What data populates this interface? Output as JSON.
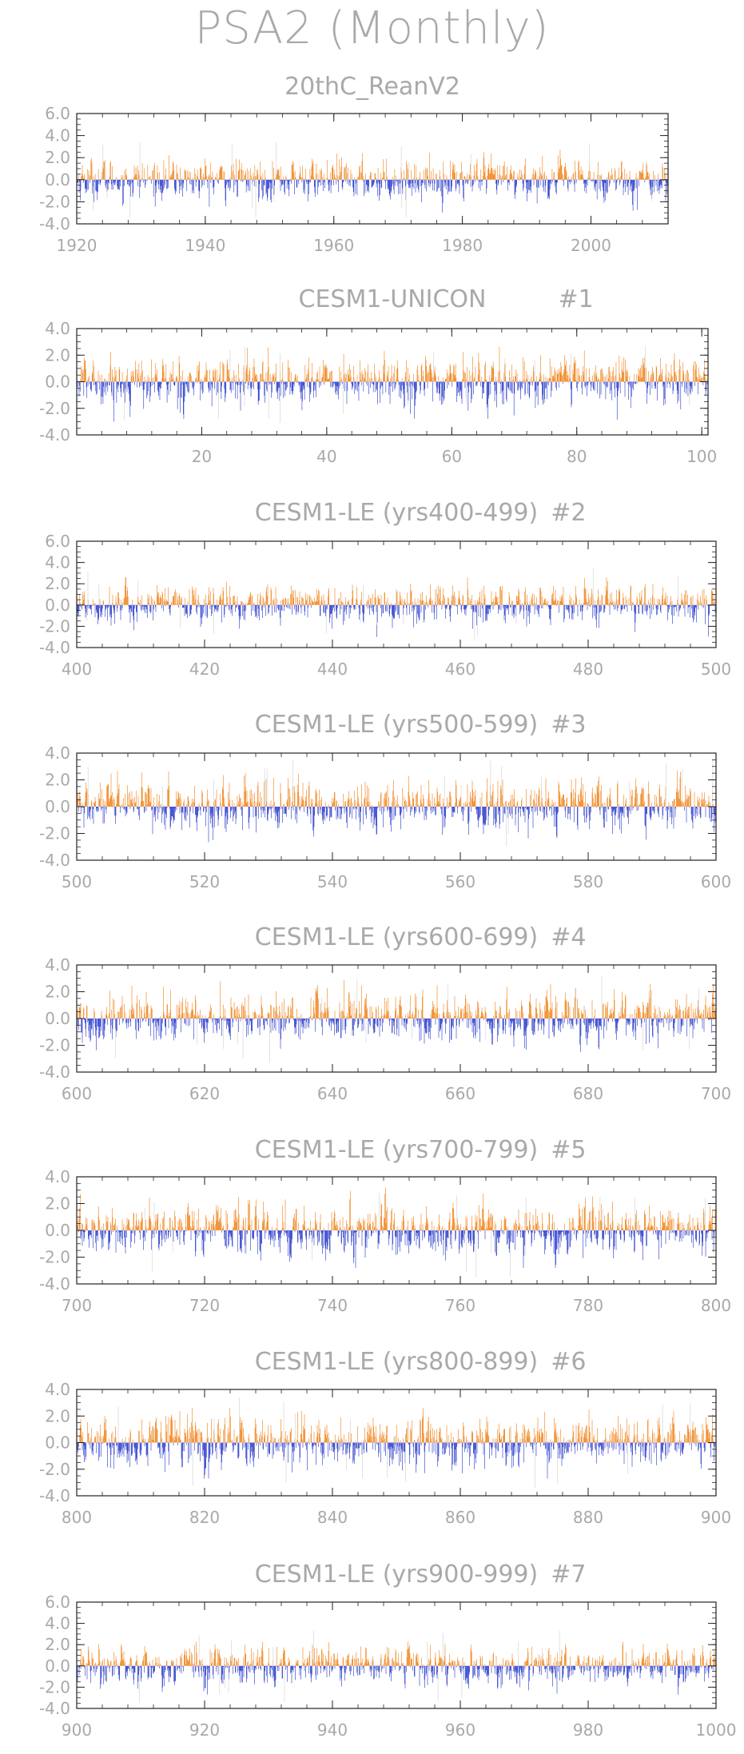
{
  "page": {
    "title": "PSA2 (Monthly)"
  },
  "colors": {
    "positive": "#f07f12",
    "negative": "#2335c9",
    "axis": "#222222",
    "text": "#a9a9a9",
    "faint": "#cfcfcf"
  },
  "chart_data": [
    {
      "type": "bar",
      "title": "20thC_ReanV2",
      "run_label": "",
      "xlim": [
        1920,
        2012
      ],
      "ylim": [
        -4,
        6
      ],
      "x_ticks": [
        "1920",
        "1940",
        "1960",
        "1980",
        "2000"
      ],
      "y_ticks": [
        "6.0",
        "4.0",
        "2.0",
        "0.0",
        "-2.0",
        "-4.0"
      ],
      "values_monthly": "PSA2 index, monthly, 1920-2012; positive bars orange, negative bars blue",
      "approx_max": 4.2,
      "approx_min": -3.0
    },
    {
      "type": "bar",
      "title": "CESM1-UNICON",
      "run_label": "#1",
      "xlim": [
        0,
        101
      ],
      "ylim": [
        -4,
        4
      ],
      "x_ticks": [
        "20",
        "40",
        "60",
        "80",
        "100"
      ],
      "y_ticks": [
        "4.0",
        "2.0",
        "0.0",
        "-2.0",
        "-4.0"
      ],
      "approx_max": 2.8,
      "approx_min": -3.0
    },
    {
      "type": "bar",
      "title": "CESM1-LE (yrs400-499)",
      "run_label": "#2",
      "xlim": [
        400,
        500
      ],
      "ylim": [
        -4,
        6
      ],
      "x_ticks": [
        "400",
        "420",
        "440",
        "460",
        "480",
        "500"
      ],
      "y_ticks": [
        "6.0",
        "4.0",
        "2.0",
        "0.0",
        "-2.0",
        "-4.0"
      ],
      "approx_max": 2.6,
      "approx_min": -3.0
    },
    {
      "type": "bar",
      "title": "CESM1-LE (yrs500-599)",
      "run_label": "#3",
      "xlim": [
        500,
        600
      ],
      "ylim": [
        -4,
        4
      ],
      "x_ticks": [
        "500",
        "520",
        "540",
        "560",
        "580",
        "600"
      ],
      "y_ticks": [
        "4.0",
        "2.0",
        "0.0",
        "-2.0",
        "-4.0"
      ],
      "approx_max": 2.7,
      "approx_min": -3.0
    },
    {
      "type": "bar",
      "title": "CESM1-LE (yrs600-699)",
      "run_label": "#4",
      "xlim": [
        600,
        700
      ],
      "ylim": [
        -4,
        4
      ],
      "x_ticks": [
        "600",
        "620",
        "640",
        "660",
        "680",
        "700"
      ],
      "y_ticks": [
        "4.0",
        "2.0",
        "0.0",
        "-2.0",
        "-4.0"
      ],
      "approx_max": 2.9,
      "approx_min": -2.5
    },
    {
      "type": "bar",
      "title": "CESM1-LE (yrs700-799)",
      "run_label": "#5",
      "xlim": [
        700,
        800
      ],
      "ylim": [
        -4,
        4
      ],
      "x_ticks": [
        "700",
        "720",
        "740",
        "760",
        "780",
        "800"
      ],
      "y_ticks": [
        "4.0",
        "2.0",
        "0.0",
        "-2.0",
        "-4.0"
      ],
      "approx_max": 3.2,
      "approx_min": -2.8
    },
    {
      "type": "bar",
      "title": "CESM1-LE (yrs800-899)",
      "run_label": "#6",
      "xlim": [
        800,
        900
      ],
      "ylim": [
        -4,
        4
      ],
      "x_ticks": [
        "800",
        "820",
        "840",
        "860",
        "880",
        "900"
      ],
      "y_ticks": [
        "4.0",
        "2.0",
        "0.0",
        "-2.0",
        "-4.0"
      ],
      "approx_max": 2.6,
      "approx_min": -2.7
    },
    {
      "type": "bar",
      "title": "CESM1-LE (yrs900-999)",
      "run_label": "#7",
      "xlim": [
        900,
        1000
      ],
      "ylim": [
        -4,
        6
      ],
      "x_ticks": [
        "900",
        "920",
        "940",
        "960",
        "980",
        "1000"
      ],
      "y_ticks": [
        "6.0",
        "4.0",
        "2.0",
        "0.0",
        "-2.0",
        "-4.0"
      ],
      "approx_max": 4.2,
      "approx_min": -3.0
    }
  ]
}
